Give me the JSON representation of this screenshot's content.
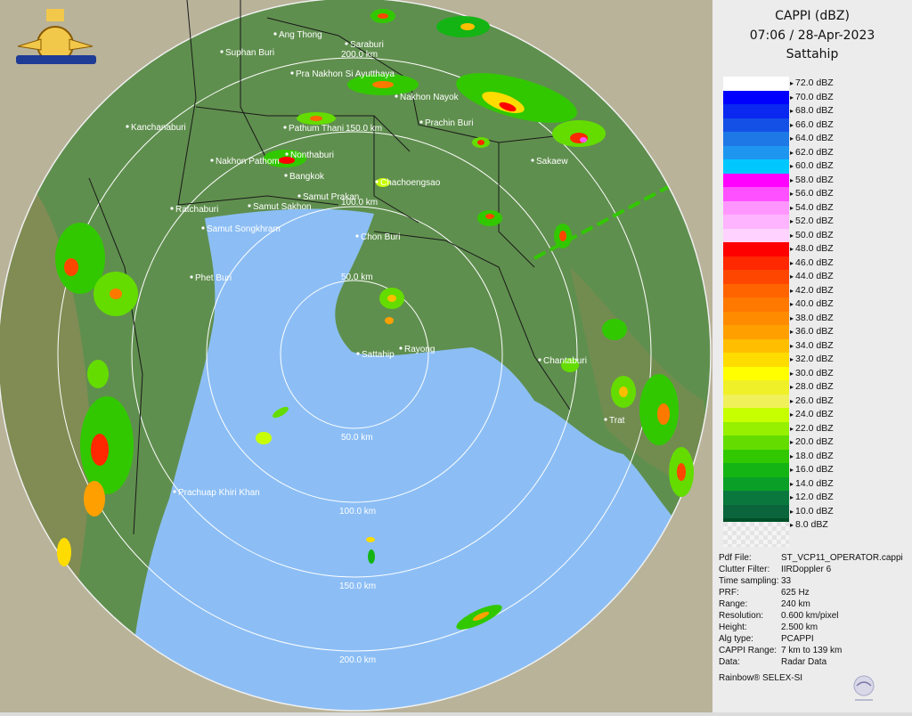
{
  "header": {
    "product": "CAPPI (dBZ)",
    "datetime": "07:06 / 28-Apr-2023",
    "station": "Sattahip"
  },
  "legend": {
    "levels": [
      {
        "label": "72.0 dBZ",
        "color": "#ffffff"
      },
      {
        "label": "70.0 dBZ",
        "color": "#0000ff"
      },
      {
        "label": "68.0 dBZ",
        "color": "#0a28f0"
      },
      {
        "label": "66.0 dBZ",
        "color": "#1450e6"
      },
      {
        "label": "64.0 dBZ",
        "color": "#1e78e6"
      },
      {
        "label": "62.0 dBZ",
        "color": "#1e96f0"
      },
      {
        "label": "60.0 dBZ",
        "color": "#00c8ff"
      },
      {
        "label": "58.0 dBZ",
        "color": "#ff00ff"
      },
      {
        "label": "56.0 dBZ",
        "color": "#ff50ff"
      },
      {
        "label": "54.0 dBZ",
        "color": "#ff96ff"
      },
      {
        "label": "52.0 dBZ",
        "color": "#ffb4ff"
      },
      {
        "label": "50.0 dBZ",
        "color": "#ffd2ff"
      },
      {
        "label": "48.0 dBZ",
        "color": "#ff0000"
      },
      {
        "label": "46.0 dBZ",
        "color": "#ff2800"
      },
      {
        "label": "44.0 dBZ",
        "color": "#ff4600"
      },
      {
        "label": "42.0 dBZ",
        "color": "#ff6400"
      },
      {
        "label": "40.0 dBZ",
        "color": "#ff7800"
      },
      {
        "label": "38.0 dBZ",
        "color": "#ff8c00"
      },
      {
        "label": "36.0 dBZ",
        "color": "#ffa000"
      },
      {
        "label": "34.0 dBZ",
        "color": "#ffbe00"
      },
      {
        "label": "32.0 dBZ",
        "color": "#ffdc00"
      },
      {
        "label": "30.0 dBZ",
        "color": "#ffff00"
      },
      {
        "label": "28.0 dBZ",
        "color": "#f0f028"
      },
      {
        "label": "26.0 dBZ",
        "color": "#f0f05a"
      },
      {
        "label": "24.0 dBZ",
        "color": "#c8ff00"
      },
      {
        "label": "22.0 dBZ",
        "color": "#96f000"
      },
      {
        "label": "20.0 dBZ",
        "color": "#64dc00"
      },
      {
        "label": "18.0 dBZ",
        "color": "#32c800"
      },
      {
        "label": "16.0 dBZ",
        "color": "#14b414"
      },
      {
        "label": "14.0 dBZ",
        "color": "#0aa028"
      },
      {
        "label": "12.0 dBZ",
        "color": "#0a783c"
      },
      {
        "label": "10.0 dBZ",
        "color": "#0a643c"
      },
      {
        "label": "8.0 dBZ",
        "color": "#005028"
      }
    ]
  },
  "info": [
    {
      "label": "Pdf File:",
      "value": "ST_VCP11_OPERATOR.cappi"
    },
    {
      "label": "Clutter Filter:",
      "value": "IIRDoppler 6"
    },
    {
      "label": "Time sampling:",
      "value": "33"
    },
    {
      "label": "PRF:",
      "value": "625 Hz"
    },
    {
      "label": "Range:",
      "value": "240 km"
    },
    {
      "label": "Resolution:",
      "value": "0.600 km/pixel"
    },
    {
      "label": "Height:",
      "value": "2.500 km"
    },
    {
      "label": "Alg type:",
      "value": "PCAPPI"
    },
    {
      "label": "CAPPI Range:",
      "value": "7 km to 139 km"
    },
    {
      "label": "Data:",
      "value": "Radar Data"
    }
  ],
  "credit": "Rainbow® SELEX-SI",
  "map": {
    "range_rings": [
      "50.0 km",
      "100.0 km",
      "150.0 km",
      "200.0 km"
    ],
    "places": [
      "Ang Thong",
      "Suphan Buri",
      "Saraburi",
      "Pra Nakhon Si Ayutthaya",
      "Nakhon Nayok",
      "Kanchanaburi",
      "Pathum Thani",
      "Prachin Buri",
      "Nakhon Pathom",
      "Nonthaburi",
      "Sakaew",
      "Bangkok",
      "Samut Prakan",
      "Chachoengsao",
      "Ratchaburi",
      "Samut Sakhon",
      "Samut Songkhram",
      "Chon Buri",
      "Phet Buri",
      "Rayong",
      "Sattahip",
      "Chantaburi",
      "Trat",
      "Prachuap Khiri Khan"
    ],
    "ring_labels_near": [
      "200.0 km",
      "150.0 km",
      "100.0 km",
      "50.0 km"
    ],
    "colors": {
      "sea": "#8cbef5",
      "land": "#5f8f4e",
      "outside": "#dcdcdc"
    }
  }
}
